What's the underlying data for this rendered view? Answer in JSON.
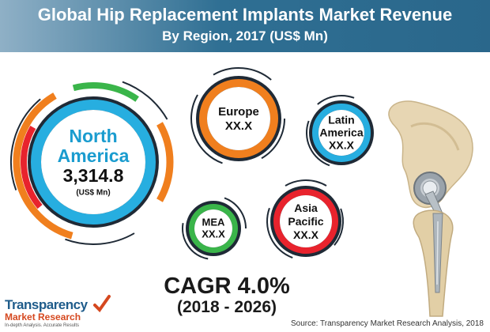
{
  "header": {
    "title": "Global Hip Replacement Implants Market Revenue",
    "subtitle": "By Region, 2017 (US$ Mn)"
  },
  "chart_data": {
    "type": "bubble",
    "title": "Global Hip Replacement Implants Market Revenue",
    "subtitle": "By Region, 2017 (US$ Mn)",
    "categories": [
      "North America",
      "Europe",
      "Latin America",
      "Asia Pacific",
      "MEA"
    ],
    "labels": [
      {
        "region_lines": [
          "North",
          "America"
        ],
        "value": "3,314.8",
        "unit": "(US$ Mn)"
      },
      {
        "region_lines": [
          "Europe"
        ],
        "value": "XX.X"
      },
      {
        "region_lines": [
          "Latin",
          "America"
        ],
        "value": "XX.X"
      },
      {
        "region_lines": [
          "Asia",
          "Pacific"
        ],
        "value": "XX.X"
      },
      {
        "region_lines": [
          "MEA"
        ],
        "value": "XX.X"
      }
    ],
    "values": [
      3314.8,
      null,
      null,
      null,
      null
    ],
    "ring_colors": [
      "#27aee0",
      "#f07f1e",
      "#27aee0",
      "#e8232d",
      "#3ab54a"
    ]
  },
  "cagr": {
    "label": "CAGR 4.0%",
    "period": "(2018 - 2026)"
  },
  "logo": {
    "word1": "Transparency",
    "word2": "Market Research",
    "tagline": "In-depth Analysis. Accurate Results"
  },
  "source": "Source: Transparency Market Research Analysis, 2018",
  "colors": {
    "title_bar": "#2f6f93",
    "blue": "#27aee0",
    "orange": "#f07f1e",
    "red": "#e8232d",
    "green": "#3ab54a",
    "dark": "#1f2a36"
  }
}
